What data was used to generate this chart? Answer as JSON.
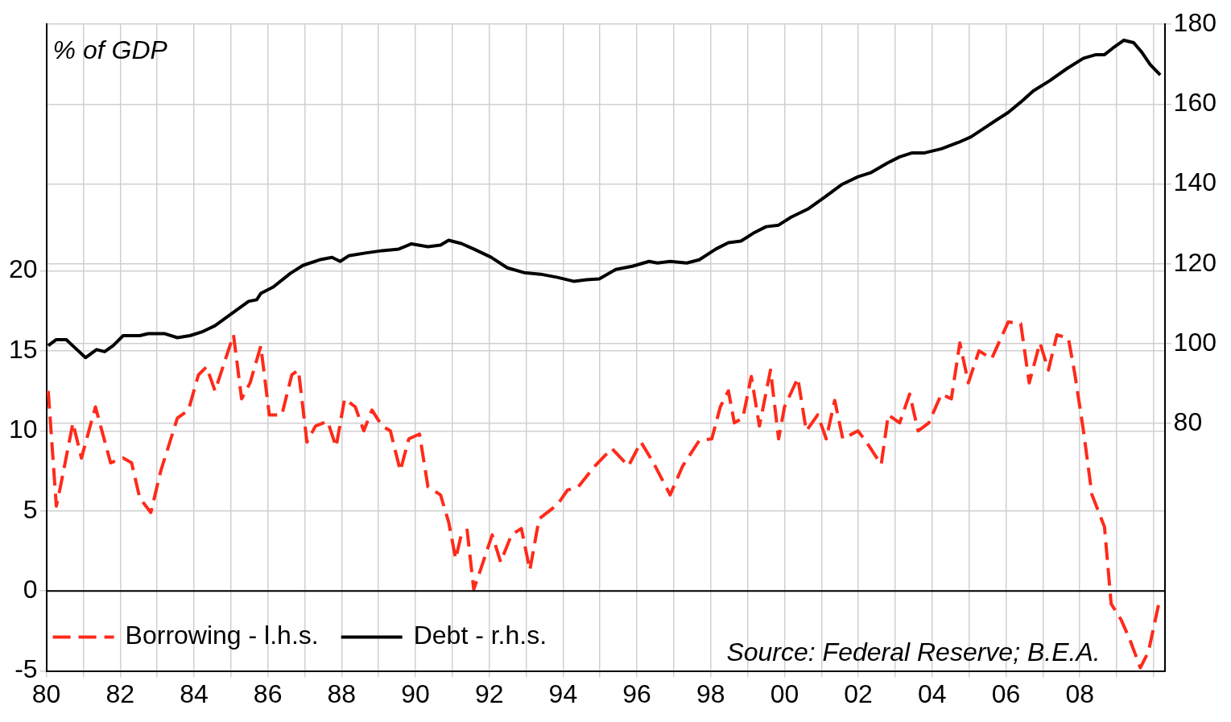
{
  "chart_data": {
    "type": "line",
    "annotations": [
      "% of GDP",
      "Source: Federal Reserve; B.E.A."
    ],
    "xlim": [
      1980,
      2010.3
    ],
    "xticks": [
      {
        "value": 1980,
        "label": "80"
      },
      {
        "value": 1981,
        "label": null
      },
      {
        "value": 1982,
        "label": "82"
      },
      {
        "value": 1983,
        "label": null
      },
      {
        "value": 1984,
        "label": "84"
      },
      {
        "value": 1985,
        "label": null
      },
      {
        "value": 1986,
        "label": "86"
      },
      {
        "value": 1987,
        "label": null
      },
      {
        "value": 1988,
        "label": "88"
      },
      {
        "value": 1989,
        "label": null
      },
      {
        "value": 1990,
        "label": "90"
      },
      {
        "value": 1991,
        "label": null
      },
      {
        "value": 1992,
        "label": "92"
      },
      {
        "value": 1993,
        "label": null
      },
      {
        "value": 1994,
        "label": "94"
      },
      {
        "value": 1995,
        "label": null
      },
      {
        "value": 1996,
        "label": "96"
      },
      {
        "value": 1997,
        "label": null
      },
      {
        "value": 1998,
        "label": "98"
      },
      {
        "value": 1999,
        "label": null
      },
      {
        "value": 2000,
        "label": "00"
      },
      {
        "value": 2001,
        "label": null
      },
      {
        "value": 2002,
        "label": "02"
      },
      {
        "value": 2003,
        "label": null
      },
      {
        "value": 2004,
        "label": "04"
      },
      {
        "value": 2005,
        "label": null
      },
      {
        "value": 2006,
        "label": "06"
      },
      {
        "value": 2007,
        "label": null
      },
      {
        "value": 2008,
        "label": "08"
      },
      {
        "value": 2009,
        "label": null
      },
      {
        "value": 2010,
        "label": null
      }
    ],
    "ylim": [
      -5,
      35.4
    ],
    "yticks": [
      -5,
      0,
      5,
      10,
      15,
      20
    ],
    "y2lim": [
      18,
      180
    ],
    "y2ticks": [
      80,
      100,
      120,
      140,
      160,
      180
    ],
    "grid": true,
    "legend": "bottom left",
    "ref_lines": [
      {
        "axis": "y",
        "value": 0,
        "color": "#000000"
      }
    ],
    "series": [
      {
        "name": "Borrowing - l.h.s.",
        "color": "#ff2a1a",
        "line_style": "dashed",
        "axis": "y",
        "x": [
          1980.05,
          1980.27,
          1980.38,
          1980.72,
          1980.95,
          1981.33,
          1981.74,
          1982.08,
          1982.31,
          1982.53,
          1982.83,
          1983.1,
          1983.55,
          1983.85,
          1984.12,
          1984.34,
          1984.57,
          1985.07,
          1985.29,
          1985.52,
          1985.81,
          1986.04,
          1986.38,
          1986.65,
          1986.83,
          1987.06,
          1987.29,
          1987.62,
          1987.85,
          1988.08,
          1988.37,
          1988.6,
          1988.82,
          1989.1,
          1989.32,
          1989.59,
          1989.82,
          1990.11,
          1990.34,
          1990.68,
          1990.9,
          1991.09,
          1991.24,
          1991.4,
          1991.58,
          1991.76,
          1992.08,
          1992.31,
          1992.6,
          1992.87,
          1993.1,
          1993.35,
          1993.85,
          1994.12,
          1994.41,
          1994.86,
          1995.32,
          1995.77,
          1996.11,
          1996.45,
          1996.9,
          1997.24,
          1997.69,
          1998.03,
          1998.26,
          1998.48,
          1998.64,
          1998.87,
          1999.1,
          1999.32,
          1999.62,
          1999.84,
          2000.0,
          2000.36,
          2000.59,
          2000.9,
          2001.13,
          2001.36,
          2001.58,
          2001.99,
          2002.22,
          2002.62,
          2002.81,
          2003.12,
          2003.39,
          2003.62,
          2003.91,
          2004.25,
          2004.52,
          2004.75,
          2004.98,
          2005.27,
          2005.61,
          2006.06,
          2006.4,
          2006.63,
          2006.92,
          2007.15,
          2007.38,
          2007.69,
          2007.87,
          2008.1,
          2008.33,
          2008.67,
          2008.85,
          2009.12,
          2009.35,
          2009.64,
          2009.86,
          2010.14
        ],
        "values": [
          12.5,
          5.3,
          6.5,
          10.5,
          8.3,
          11.5,
          8,
          8.3,
          8,
          5.8,
          4.9,
          7.5,
          10.8,
          11.3,
          13.5,
          14,
          12.5,
          16,
          12,
          13,
          15.3,
          11,
          11,
          13.5,
          13.8,
          9.3,
          10.3,
          10.6,
          9,
          12,
          11.5,
          10,
          11.3,
          10.3,
          10,
          7.5,
          9.5,
          9.8,
          6.5,
          6,
          4.3,
          2,
          3.5,
          3.8,
          0.1,
          1.3,
          3.5,
          1.8,
          3.5,
          3.9,
          1.3,
          4.5,
          5.4,
          6.3,
          6.5,
          7.8,
          8.9,
          7.8,
          9.3,
          8,
          6,
          7.8,
          9.4,
          9.5,
          11.5,
          12.5,
          10.5,
          10.8,
          13.4,
          10.3,
          13.8,
          9.5,
          11.5,
          13.3,
          10,
          11,
          9.5,
          11.9,
          9.5,
          10,
          9.3,
          7.9,
          11,
          10.5,
          12.3,
          10,
          10.5,
          12.3,
          12,
          15.5,
          13,
          15,
          14.5,
          16.8,
          16.7,
          13,
          15.5,
          13.8,
          16,
          15.8,
          13.5,
          10,
          6,
          4,
          -0.8,
          -1.8,
          -3,
          -4.8,
          -3.8,
          -0.8
        ]
      },
      {
        "name": "Debt - r.h.s.",
        "color": "#000000",
        "line_style": "solid",
        "axis": "y2",
        "x": [
          1980.05,
          1980.27,
          1980.54,
          1980.77,
          1981.06,
          1981.36,
          1981.58,
          1981.81,
          1982.08,
          1982.53,
          1982.76,
          1983.21,
          1983.55,
          1983.89,
          1984.23,
          1984.57,
          1985.02,
          1985.48,
          1985.7,
          1985.81,
          1986.15,
          1986.61,
          1986.95,
          1987.4,
          1987.74,
          1987.96,
          1988.19,
          1988.64,
          1989.1,
          1989.55,
          1989.89,
          1990.34,
          1990.68,
          1990.9,
          1991.24,
          1991.58,
          1992.04,
          1992.49,
          1992.94,
          1993.39,
          1993.85,
          1994.3,
          1994.64,
          1994.98,
          1995.43,
          1995.88,
          1996.33,
          1996.56,
          1996.9,
          1997.35,
          1997.69,
          1998.14,
          1998.48,
          1998.82,
          1999.16,
          1999.5,
          1999.84,
          2000.18,
          2000.63,
          2001.09,
          2001.54,
          2001.99,
          2002.33,
          2002.78,
          2003.12,
          2003.46,
          2003.8,
          2004.25,
          2004.71,
          2005.05,
          2005.38,
          2005.72,
          2006.06,
          2006.4,
          2006.74,
          2007.19,
          2007.65,
          2008.1,
          2008.44,
          2008.67,
          2008.89,
          2009.19,
          2009.46,
          2009.68,
          2009.91,
          2010.18
        ],
        "values": [
          99.5,
          101,
          101,
          99,
          96.5,
          98.5,
          98,
          99.5,
          102,
          102,
          102.5,
          102.5,
          101.5,
          102,
          103,
          104.5,
          107.5,
          110.6,
          111,
          112.6,
          114.2,
          117.6,
          119.6,
          121,
          121.6,
          120.6,
          122,
          122.7,
          123.3,
          123.7,
          125,
          124.3,
          124.7,
          125.9,
          125.1,
          123.7,
          121.7,
          119,
          117.8,
          117.4,
          116.6,
          115.6,
          116,
          116.2,
          118.6,
          119.4,
          120.6,
          120.2,
          120.6,
          120.2,
          121,
          123.7,
          125.3,
          125.7,
          127.7,
          129.3,
          129.7,
          131.7,
          133.7,
          136.7,
          139.8,
          141.8,
          142.8,
          145.2,
          146.8,
          147.8,
          147.8,
          148.8,
          150.4,
          151.8,
          153.8,
          155.9,
          157.9,
          160.5,
          163.3,
          165.9,
          168.9,
          171.5,
          172.4,
          172.4,
          174,
          176,
          175.4,
          173,
          169.9,
          167.3
        ]
      }
    ]
  }
}
